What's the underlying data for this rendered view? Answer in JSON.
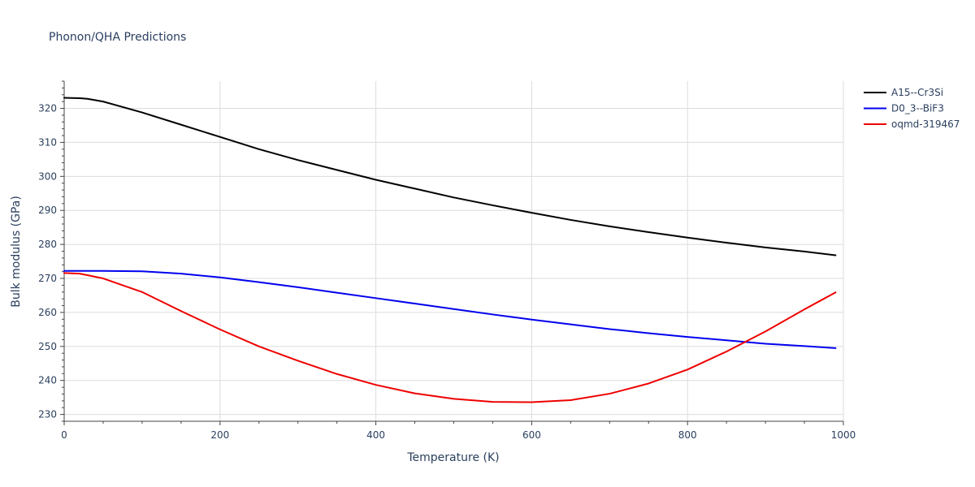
{
  "chart_data": {
    "type": "line",
    "title": "Phonon/QHA Predictions",
    "xlabel": "Temperature (K)",
    "ylabel": "Bulk modulus (GPa)",
    "xlim": [
      0,
      1000
    ],
    "ylim": [
      228,
      328
    ],
    "xticks": [
      0,
      200,
      400,
      600,
      800,
      1000
    ],
    "yticks": [
      230,
      240,
      250,
      260,
      270,
      280,
      290,
      300,
      310,
      320
    ],
    "grid": true,
    "legend_position": "top-right",
    "series": [
      {
        "name": "A15--Cr3Si",
        "color": "#000000",
        "x": [
          0,
          20,
          30,
          50,
          100,
          150,
          200,
          250,
          300,
          350,
          400,
          450,
          500,
          550,
          600,
          650,
          700,
          750,
          800,
          850,
          900,
          950,
          990
        ],
        "y": [
          323.1,
          323.0,
          322.8,
          322.0,
          318.8,
          315.2,
          311.6,
          308.0,
          304.8,
          301.9,
          299.0,
          296.4,
          293.8,
          291.5,
          289.3,
          287.2,
          285.3,
          283.6,
          282.0,
          280.5,
          279.1,
          277.9,
          276.8
        ]
      },
      {
        "name": "D0_3--BiF3",
        "color": "#0000ee",
        "x": [
          0,
          50,
          100,
          150,
          200,
          250,
          300,
          350,
          400,
          450,
          500,
          550,
          600,
          650,
          700,
          750,
          800,
          850,
          900,
          950,
          990
        ],
        "y": [
          272.2,
          272.2,
          272.1,
          271.4,
          270.3,
          268.9,
          267.4,
          265.8,
          264.2,
          262.6,
          261.0,
          259.4,
          257.9,
          256.5,
          255.1,
          253.9,
          252.8,
          251.8,
          250.8,
          250.1,
          249.5
        ]
      },
      {
        "name": "oqmd-319467",
        "color": "#ee0000",
        "x": [
          0,
          20,
          50,
          100,
          150,
          200,
          250,
          300,
          350,
          400,
          450,
          500,
          550,
          600,
          650,
          700,
          750,
          800,
          850,
          900,
          950,
          990
        ],
        "y": [
          271.6,
          271.4,
          270.0,
          266.0,
          260.4,
          255.0,
          250.0,
          245.8,
          241.9,
          238.7,
          236.2,
          234.6,
          233.7,
          233.6,
          234.2,
          236.1,
          239.1,
          243.2,
          248.5,
          254.4,
          260.9,
          265.9
        ]
      }
    ]
  }
}
